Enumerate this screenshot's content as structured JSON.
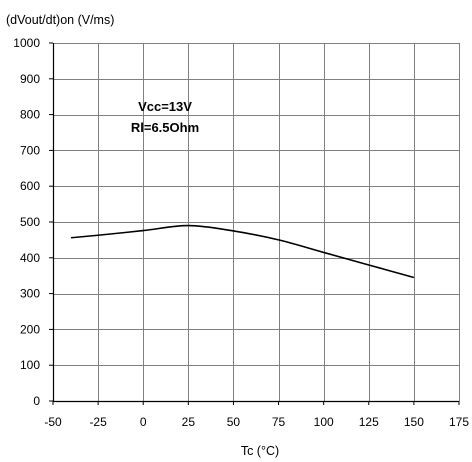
{
  "chart_data": {
    "type": "line",
    "title": "",
    "ylabel": "(dVout/dt)on (V/ms)",
    "xlabel": "Tc (°C)",
    "xlim": [
      -50,
      175
    ],
    "ylim": [
      0,
      1000
    ],
    "xticks": [
      -50,
      -25,
      0,
      25,
      50,
      75,
      100,
      125,
      150,
      175
    ],
    "yticks": [
      0,
      100,
      200,
      300,
      400,
      500,
      600,
      700,
      800,
      900,
      1000
    ],
    "grid": true,
    "legend": "none",
    "annotations": [
      "Vcc=13V",
      "Rl=6.5Ohm"
    ],
    "series": [
      {
        "x": [
          -40,
          -25,
          0,
          25,
          50,
          75,
          100,
          125,
          150
        ],
        "y": [
          456,
          463,
          476,
          490,
          475,
          450,
          415,
          380,
          345
        ]
      }
    ]
  },
  "colors": {
    "grid": "#808080",
    "axis": "#000000",
    "line": "#000000"
  }
}
